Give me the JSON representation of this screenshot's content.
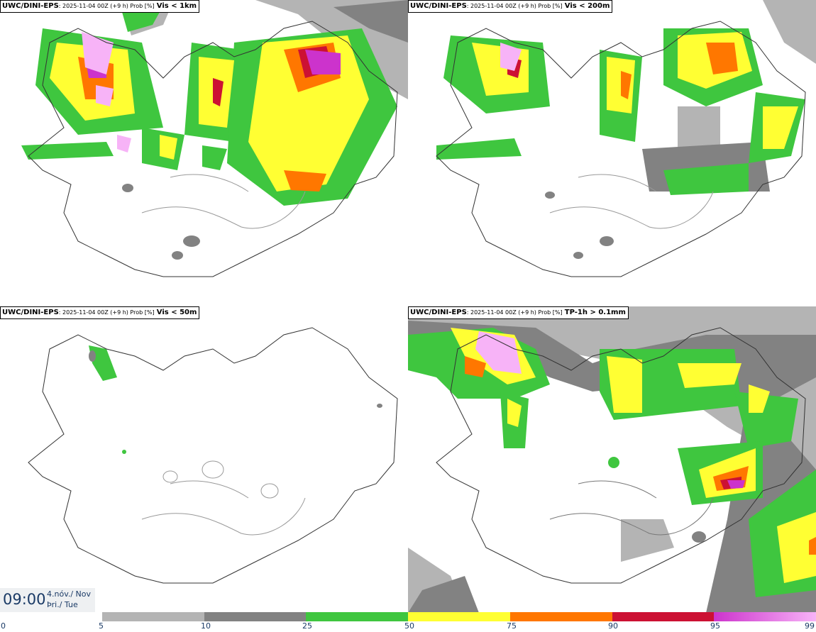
{
  "colors": {
    "p5": "#b4b4b4",
    "p10": "#828282",
    "p25": "#3fc63f",
    "p50": "#ffff33",
    "p75": "#ff7700",
    "p90": "#cc1133",
    "p95": "#cc33cc",
    "p99": "#f7b3f7",
    "coast": "#333333"
  },
  "panels": [
    {
      "source": "UWC/DINI-EPS",
      "meta": ": 2025-11-04 00Z (+9 h) Prob [%]",
      "variable": "Vis < 1km"
    },
    {
      "source": "UWC/DINI-EPS",
      "meta": ": 2025-11-04 00Z (+9 h) Prob [%]",
      "variable": "Vis < 200m"
    },
    {
      "source": "UWC/DINI-EPS",
      "meta": ": 2025-11-04 00Z (+9 h) Prob [%]",
      "variable": "Vis < 50m"
    },
    {
      "source": "UWC/DINI-EPS",
      "meta": ": 2025-11-04 00Z (+9 h) Prob [%]",
      "variable": "TP-1h > 0.1mm"
    }
  ],
  "valid_time": {
    "time": "09:00",
    "date_line1": "4.nóv./ Nov",
    "date_line2": "Þri./ Tue"
  },
  "legend": {
    "ticks": [
      "0",
      "5",
      "10",
      "25",
      "50",
      "75",
      "90",
      "95",
      "99"
    ],
    "bins": [
      {
        "from": 5,
        "to": 10,
        "color_key": "p5"
      },
      {
        "from": 10,
        "to": 25,
        "color_key": "p10"
      },
      {
        "from": 25,
        "to": 50,
        "color_key": "p25"
      },
      {
        "from": 50,
        "to": 75,
        "color_key": "p50"
      },
      {
        "from": 75,
        "to": 90,
        "color_key": "p75"
      },
      {
        "from": 90,
        "to": 95,
        "color_key": "p90"
      },
      {
        "from": 95,
        "to": 99,
        "color_key": "p95"
      }
    ]
  }
}
